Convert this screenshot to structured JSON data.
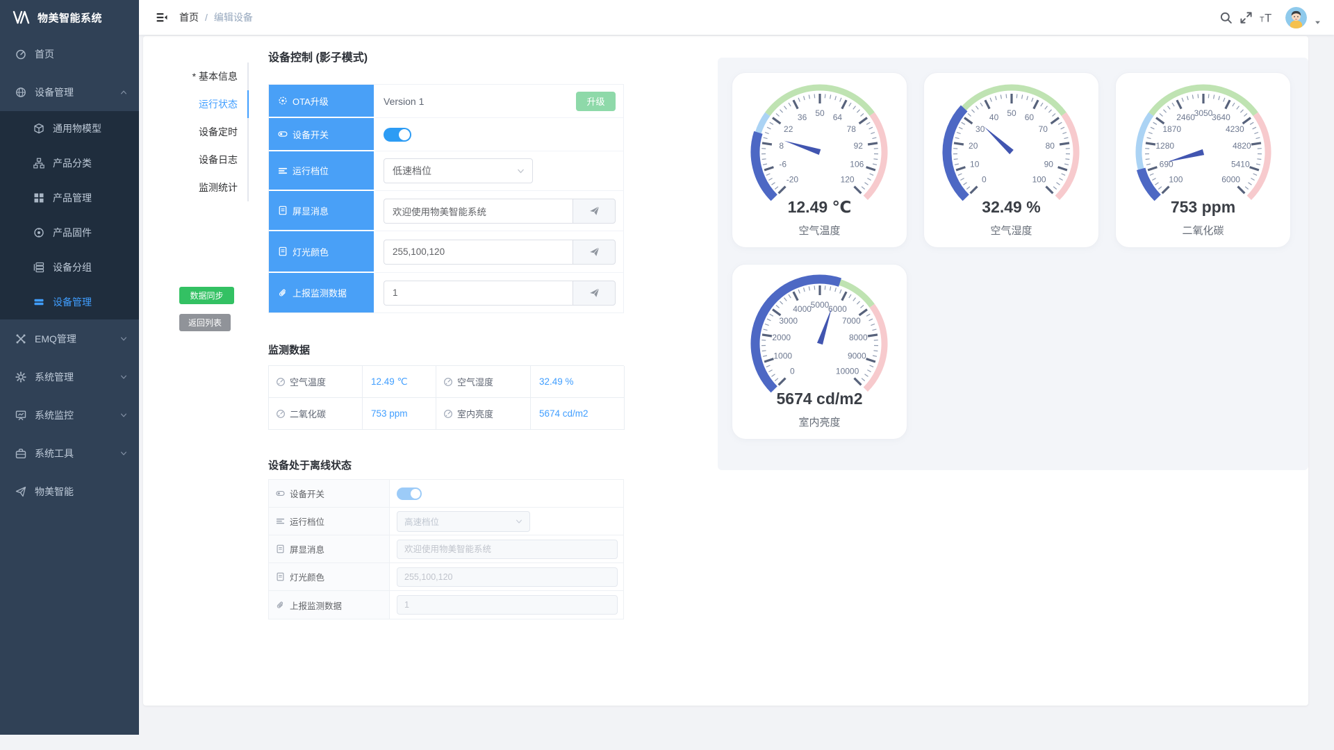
{
  "app": {
    "title": "物美智能系统"
  },
  "sidebar": {
    "items": [
      {
        "type": "item",
        "icon": "dashboard-icon",
        "label": "首页"
      },
      {
        "type": "parent",
        "icon": "device-icon",
        "label": "设备管理",
        "expanded": true
      },
      {
        "type": "sub",
        "icon": "cube-icon",
        "label": "通用物模型"
      },
      {
        "type": "sub",
        "icon": "category-icon",
        "label": "产品分类"
      },
      {
        "type": "sub",
        "icon": "grid-icon",
        "label": "产品管理"
      },
      {
        "type": "sub",
        "icon": "firmware-icon",
        "label": "产品固件"
      },
      {
        "type": "sub",
        "icon": "group-icon",
        "label": "设备分组"
      },
      {
        "type": "sub",
        "icon": "bars-icon",
        "label": "设备管理",
        "active": true
      },
      {
        "type": "parent",
        "icon": "emq-icon",
        "label": "EMQ管理"
      },
      {
        "type": "parent",
        "icon": "gear-icon",
        "label": "系统管理"
      },
      {
        "type": "parent",
        "icon": "monitor-icon",
        "label": "系统监控"
      },
      {
        "type": "parent",
        "icon": "tools-icon",
        "label": "系统工具"
      },
      {
        "type": "item",
        "icon": "plane-icon",
        "label": "物美智能"
      }
    ]
  },
  "header": {
    "breadcrumb": {
      "home": "首页",
      "separator": "/",
      "current": "编辑设备"
    },
    "icons": [
      "hamburger-icon",
      "search-icon",
      "fullscreen-icon",
      "font-size-icon",
      "avatar",
      "caret-down-icon"
    ]
  },
  "tabs": [
    {
      "label": "* 基本信息",
      "active": false
    },
    {
      "label": "运行状态",
      "active": true
    },
    {
      "label": "设备定时",
      "active": false
    },
    {
      "label": "设备日志",
      "active": false
    },
    {
      "label": "监测统计",
      "active": false
    }
  ],
  "actions": {
    "sync": "数据同步",
    "back": "返回列表"
  },
  "control": {
    "title": "设备控制 (影子模式)",
    "rows": {
      "ota": {
        "label": "OTA升级",
        "value": "Version 1",
        "button": "升级"
      },
      "switch": {
        "label": "设备开关",
        "on": true
      },
      "gear": {
        "label": "运行档位",
        "value": "低速档位"
      },
      "message": {
        "label": "屏显消息",
        "value": "欢迎使用物美智能系统"
      },
      "light": {
        "label": "灯光颜色",
        "value": "255,100,120"
      },
      "report": {
        "label": "上报监测数据",
        "value": "1"
      }
    }
  },
  "monitor": {
    "title": "监测数据",
    "cells": [
      {
        "label": "空气温度",
        "value": "12.49 ℃"
      },
      {
        "label": "空气湿度",
        "value": "32.49 %"
      },
      {
        "label": "二氧化碳",
        "value": "753 ppm"
      },
      {
        "label": "室内亮度",
        "value": "5674 cd/m2"
      }
    ]
  },
  "offline": {
    "title": "设备处于离线状态",
    "rows": [
      {
        "type": "toggle",
        "icon": "switch-icon",
        "label": "设备开关",
        "on": true
      },
      {
        "type": "select",
        "icon": "lines-icon",
        "label": "运行档位",
        "value": "高速档位"
      },
      {
        "type": "input",
        "icon": "doc-icon",
        "label": "屏显消息",
        "value": "欢迎使用物美智能系统"
      },
      {
        "type": "input",
        "icon": "doc-icon",
        "label": "灯光颜色",
        "value": "255,100,120"
      },
      {
        "type": "input",
        "icon": "clip-icon",
        "label": "上报监测数据",
        "value": "1"
      }
    ]
  },
  "chart_data": {
    "type": "gauge",
    "start_angle": 225,
    "end_angle": -45,
    "split_number": 10,
    "bands": [
      {
        "to": 0.3,
        "color": "#abd3f4"
      },
      {
        "to": 0.7,
        "color": "#bfe3b2"
      },
      {
        "to": 1.0,
        "color": "#f7cacd"
      }
    ],
    "progress_color": "#4d68c4",
    "needle_color": "#4155b0",
    "gauges": [
      {
        "name": "空气温度",
        "value": 12.49,
        "min": -20,
        "max": 120,
        "unit": "℃",
        "display": "12.49 ℃"
      },
      {
        "name": "空气湿度",
        "value": 32.49,
        "min": 0,
        "max": 100,
        "unit": "%",
        "display": "32.49 %"
      },
      {
        "name": "二氧化碳",
        "value": 753,
        "min": 100,
        "max": 6000,
        "unit": "ppm",
        "display": "753 ppm"
      },
      {
        "name": "室内亮度",
        "value": 5674,
        "min": 0,
        "max": 10000,
        "unit": "cd/m2",
        "display": "5674 cd/m2"
      }
    ]
  },
  "colors": {
    "accent": "#409eff",
    "label_blue": "#49a0f7",
    "toggle_blue": "#2d9cf4",
    "toggle_disabled": "#9ccbf8",
    "success_green": "#33c163",
    "upgrade_green": "#8ed9a9",
    "info_gray": "#909399",
    "sidebar_bg": "#304156",
    "submenu_bg": "#1f2d3d"
  }
}
